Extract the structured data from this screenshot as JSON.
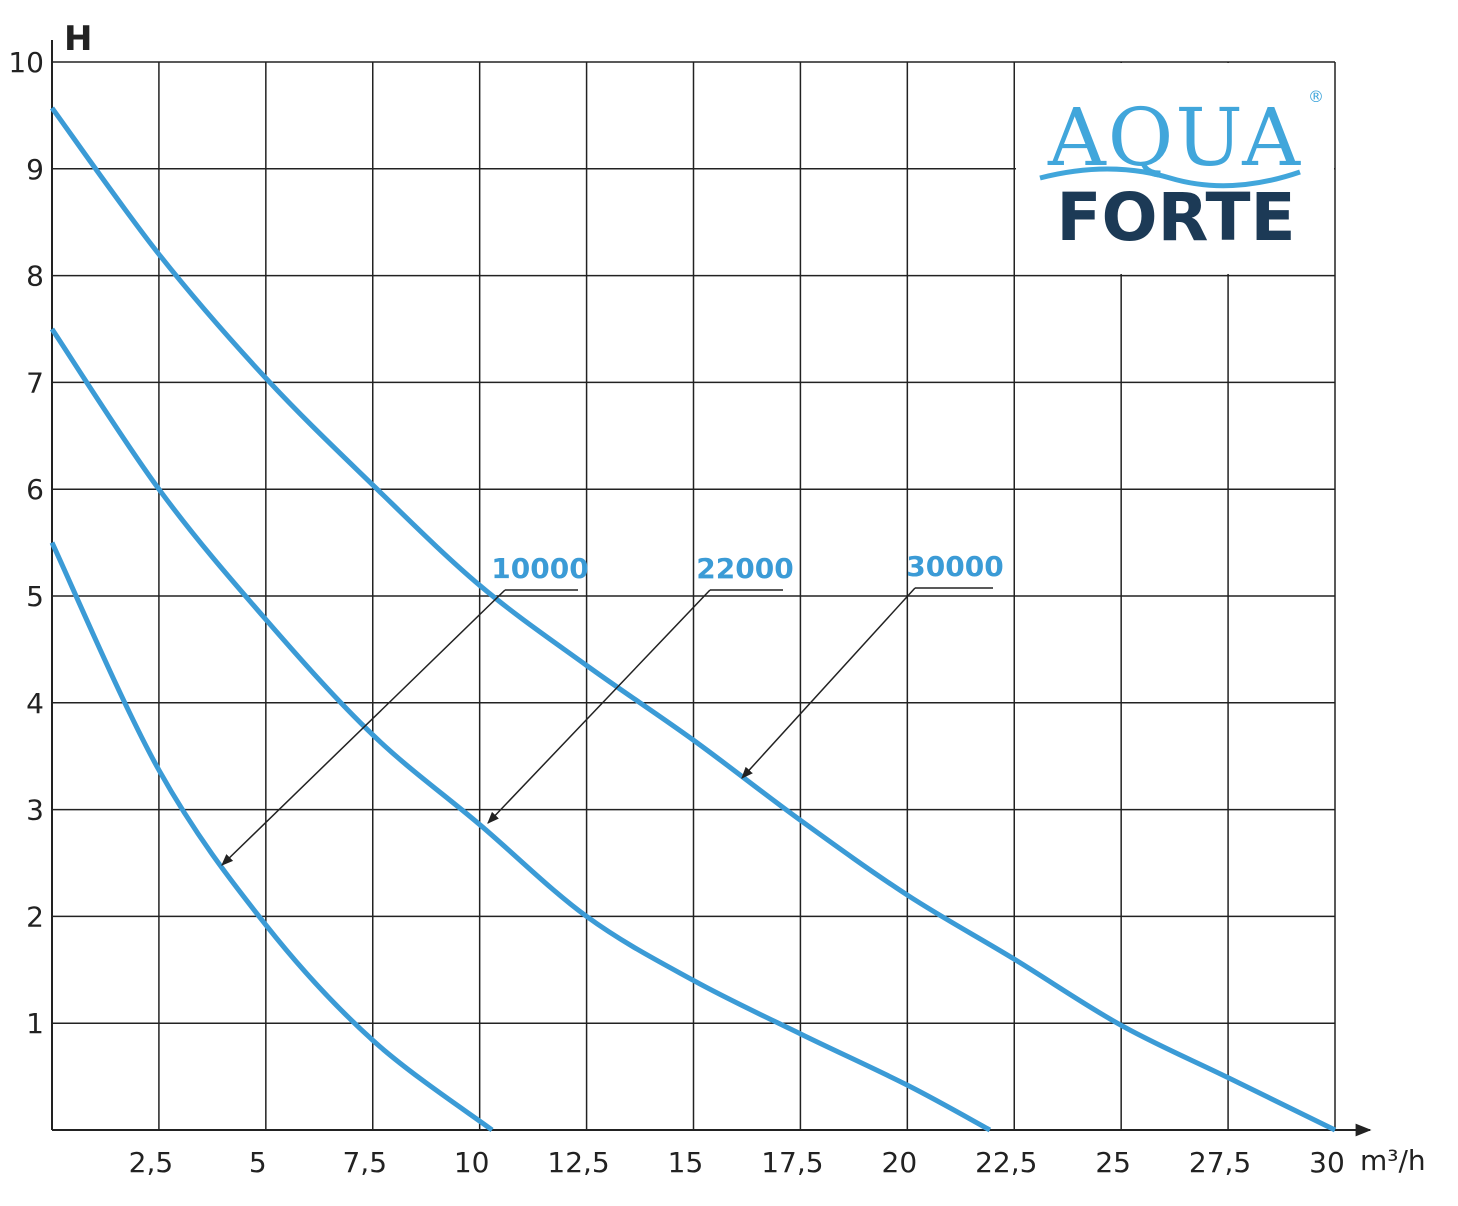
{
  "chart_data": {
    "type": "line",
    "y_label": "H",
    "x_label": "m³/h",
    "xlim": [
      0,
      30
    ],
    "ylim": [
      0,
      10
    ],
    "xticks": [
      {
        "value": 2.5,
        "label": "2,5"
      },
      5,
      {
        "value": 7.5,
        "label": "7,5"
      },
      10,
      {
        "value": 12.5,
        "label": "12,5"
      },
      15,
      {
        "value": 17.5,
        "label": "17,5"
      },
      20,
      {
        "value": 22.5,
        "label": "22,5"
      },
      25,
      {
        "value": 27.5,
        "label": "27,5"
      },
      30
    ],
    "yticks": [
      1,
      2,
      3,
      4,
      5,
      6,
      7,
      8,
      9,
      10
    ],
    "grid": true,
    "series": [
      {
        "name": "10000",
        "color": "#3b9bd6",
        "x": [
          0,
          2.5,
          5,
          7.5,
          10.29
        ],
        "values": [
          5.5,
          3.37,
          1.92,
          0.84,
          0
        ]
      },
      {
        "name": "22000",
        "color": "#3b9bd6",
        "x": [
          0,
          2.5,
          5,
          7.5,
          10,
          12.5,
          15,
          17.5,
          20,
          21.93
        ],
        "values": [
          7.5,
          6.0,
          4.78,
          3.7,
          2.86,
          2.0,
          1.4,
          0.9,
          0.42,
          0
        ]
      },
      {
        "name": "30000",
        "color": "#3b9bd6",
        "x": [
          0,
          2.5,
          5,
          7.5,
          10,
          12.5,
          15,
          17.5,
          20,
          22.5,
          25,
          27.5,
          30
        ],
        "values": [
          9.57,
          8.2,
          7.04,
          6.04,
          5.1,
          4.35,
          3.65,
          2.9,
          2.2,
          1.6,
          0.98,
          0.49,
          0
        ]
      }
    ],
    "logo": {
      "top": "AQUA",
      "bottom": "FORTE",
      "mark": "®"
    }
  }
}
